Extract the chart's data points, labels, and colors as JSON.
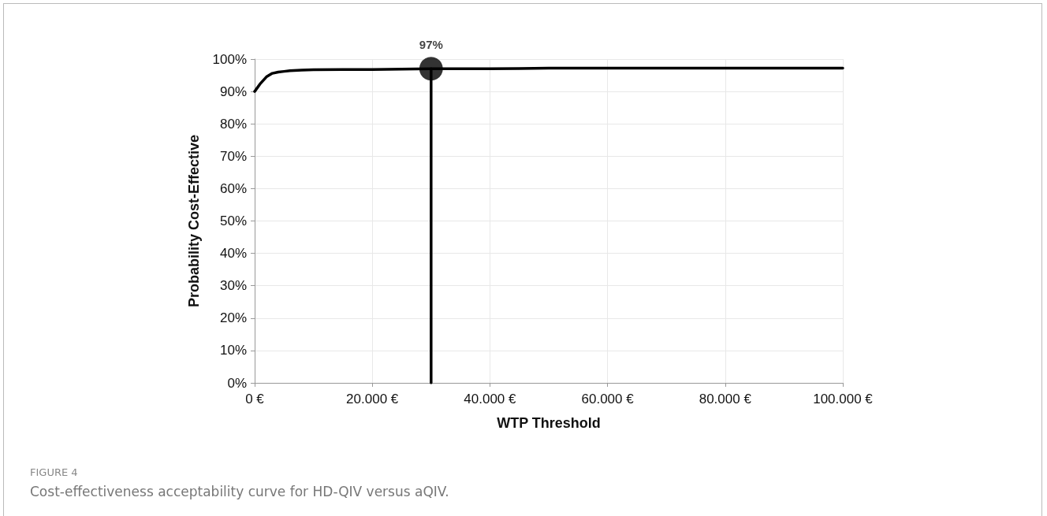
{
  "chart_data": {
    "type": "line",
    "xlabel": "WTP Threshold",
    "ylabel": "Probability Cost-Effective",
    "series": [
      {
        "color": "#000000",
        "marker": "none",
        "x": [
          0,
          1000,
          2000,
          3000,
          4000,
          5000,
          6000,
          8000,
          10000,
          15000,
          20000,
          25000,
          30000,
          40000,
          45000,
          50000,
          60000,
          80000,
          100000
        ],
        "values": [
          90,
          92.5,
          94.5,
          95.6,
          96,
          96.2,
          96.4,
          96.6,
          96.7,
          96.8,
          96.8,
          96.9,
          97,
          97,
          97.1,
          97.2,
          97.2,
          97.2,
          97.2
        ]
      },
      {
        "color": "#000000",
        "marker": "none",
        "x": [
          30000,
          30000
        ],
        "values": [
          0,
          97
        ]
      },
      {
        "type": "scatter",
        "color": "#000000",
        "marker": "circle",
        "x": [
          30000
        ],
        "values": [
          97
        ],
        "value_labels": [
          "97%"
        ]
      }
    ],
    "xlim": [
      0,
      100000
    ],
    "xticks": [
      {
        "value": 0,
        "label": "0 €"
      },
      {
        "value": 20000,
        "label": "20.000 €"
      },
      {
        "value": 40000,
        "label": "40.000 €"
      },
      {
        "value": 60000,
        "label": "60.000 €"
      },
      {
        "value": 80000,
        "label": "80.000 €"
      },
      {
        "value": 100000,
        "label": "100.000 €"
      }
    ],
    "ylim": [
      0,
      100
    ],
    "yticks": [
      {
        "value": 0,
        "label": "0%"
      },
      {
        "value": 10,
        "label": "10%"
      },
      {
        "value": 20,
        "label": "20%"
      },
      {
        "value": 30,
        "label": "30%"
      },
      {
        "value": 40,
        "label": "40%"
      },
      {
        "value": 50,
        "label": "50%"
      },
      {
        "value": 60,
        "label": "60%"
      },
      {
        "value": 70,
        "label": "70%"
      },
      {
        "value": 80,
        "label": "80%"
      },
      {
        "value": 90,
        "label": "90%"
      },
      {
        "value": 100,
        "label": "100%"
      }
    ],
    "grid": true,
    "annotations": [
      "FIGURE 4",
      "Cost-effectiveness acceptability curve for HD-QIV versus aQIV."
    ]
  }
}
